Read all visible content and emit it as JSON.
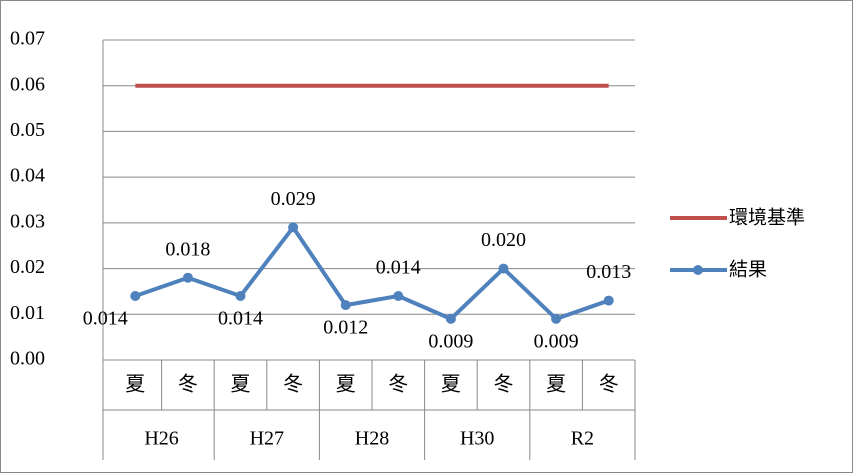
{
  "chart_data": {
    "type": "line",
    "categories": [
      "夏",
      "冬",
      "夏",
      "冬",
      "夏",
      "冬",
      "夏",
      "冬",
      "夏",
      "冬"
    ],
    "category_groups": [
      "H26",
      "H27",
      "H28",
      "H30",
      "R2"
    ],
    "series": [
      {
        "name": "環境基準",
        "color": "#c0504d",
        "values": [
          0.06,
          0.06,
          0.06,
          0.06,
          0.06,
          0.06,
          0.06,
          0.06,
          0.06,
          0.06
        ]
      },
      {
        "name": "結果",
        "color": "#4f81bd",
        "values": [
          0.014,
          0.018,
          0.014,
          0.029,
          0.012,
          0.014,
          0.009,
          0.02,
          0.009,
          0.013
        ],
        "value_labels": [
          "0.014",
          "0.018",
          "0.014",
          "0.029",
          "0.012",
          "0.014",
          "0.009",
          "0.020",
          "0.009",
          "0.013"
        ]
      }
    ],
    "ylim": [
      0,
      0.07
    ],
    "yticks": [
      {
        "value": 0,
        "label": "0.00"
      },
      0.01,
      0.02,
      0.03,
      0.04,
      0.05,
      0.06,
      0.07
    ],
    "grid": true,
    "legend": "right"
  }
}
